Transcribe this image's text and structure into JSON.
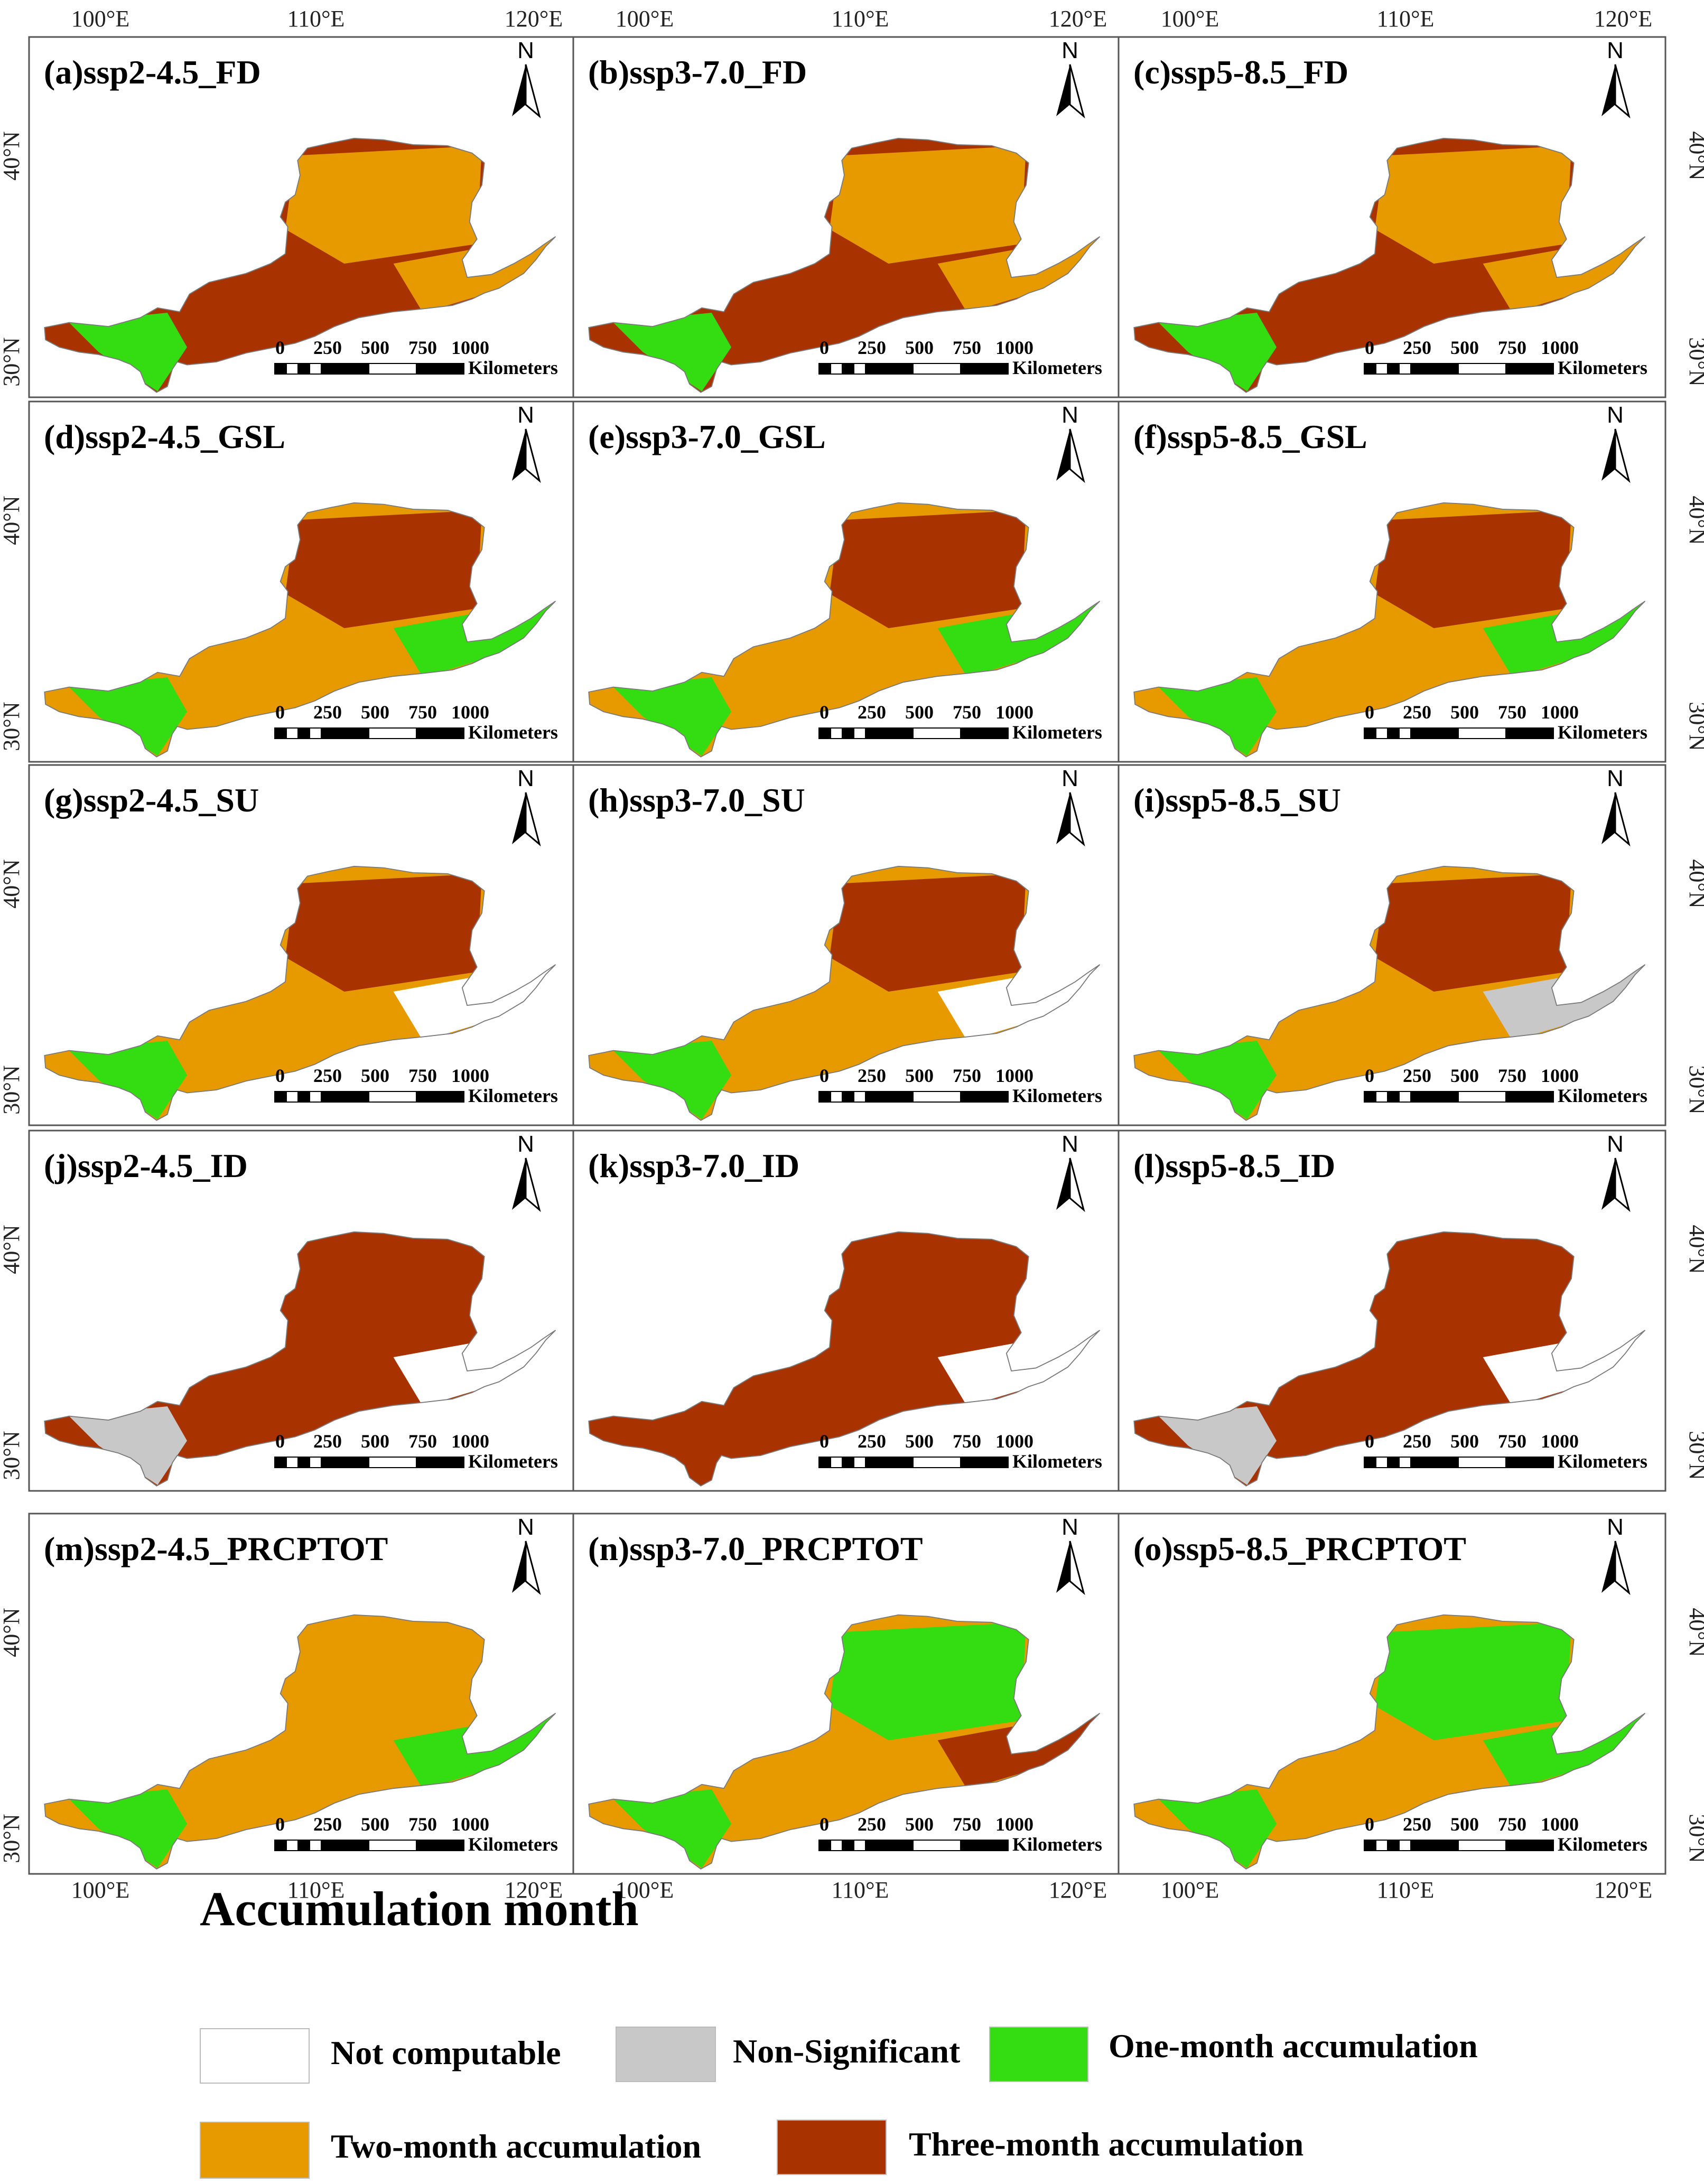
{
  "figure": {
    "x_ticks": [
      "100°E",
      "110°E",
      "120°E"
    ],
    "y_ticks": [
      "40°N",
      "30°N"
    ]
  },
  "north_arrow_label": "N",
  "scale_bar": {
    "numbers": [
      "0",
      "250",
      "500",
      "750",
      "1000"
    ],
    "unit": "Kilometers"
  },
  "categories": [
    {
      "key": "nc",
      "label": "Not computable",
      "color": "#ffffff"
    },
    {
      "key": "ns",
      "label": "Non-Significant",
      "color": "#c8c8c8"
    },
    {
      "key": "m1",
      "label": "One-month accumulation",
      "color": "#33dd11"
    },
    {
      "key": "m2",
      "label": "Two-month accumulation",
      "color": "#e69a00"
    },
    {
      "key": "m3",
      "label": "Three-month accumulation",
      "color": "#a83200"
    }
  ],
  "legend": {
    "title": "Accumulation month"
  },
  "panels": [
    {
      "title": "(a)ssp2-4.5_FD",
      "dominant": "m3",
      "patches": [
        "m2",
        "m1",
        "m2"
      ]
    },
    {
      "title": "(b)ssp3-7.0_FD",
      "dominant": "m3",
      "patches": [
        "m2",
        "m1",
        "m2"
      ]
    },
    {
      "title": "(c)ssp5-8.5_FD",
      "dominant": "m3",
      "patches": [
        "m2",
        "m1",
        "m2"
      ]
    },
    {
      "title": "(d)ssp2-4.5_GSL",
      "dominant": "m2",
      "patches": [
        "m3",
        "m1",
        "m1"
      ]
    },
    {
      "title": "(e)ssp3-7.0_GSL",
      "dominant": "m2",
      "patches": [
        "m3",
        "m1",
        "m1"
      ]
    },
    {
      "title": "(f)ssp5-8.5_GSL",
      "dominant": "m2",
      "patches": [
        "m3",
        "m1",
        "m1"
      ]
    },
    {
      "title": "(g)ssp2-4.5_SU",
      "dominant": "m2",
      "patches": [
        "m3",
        "m1",
        "nc"
      ]
    },
    {
      "title": "(h)ssp3-7.0_SU",
      "dominant": "m2",
      "patches": [
        "m3",
        "m1",
        "nc"
      ]
    },
    {
      "title": "(i)ssp5-8.5_SU",
      "dominant": "m2",
      "patches": [
        "m3",
        "m1",
        "ns"
      ]
    },
    {
      "title": "(j)ssp2-4.5_ID",
      "dominant": "m3",
      "patches": [
        "m3",
        "ns",
        "nc"
      ]
    },
    {
      "title": "(k)ssp3-7.0_ID",
      "dominant": "m3",
      "patches": [
        "m3",
        "m3",
        "nc"
      ]
    },
    {
      "title": "(l)ssp5-8.5_ID",
      "dominant": "m3",
      "patches": [
        "m3",
        "ns",
        "nc"
      ]
    },
    {
      "title": "(m)ssp2-4.5_PRCPTOT",
      "dominant": "m2",
      "patches": [
        "m2",
        "m1",
        "m1"
      ]
    },
    {
      "title": "(n)ssp3-7.0_PRCPTOT",
      "dominant": "m2",
      "patches": [
        "m1",
        "m1",
        "m3"
      ]
    },
    {
      "title": "(o)ssp5-8.5_PRCPTOT",
      "dominant": "m2",
      "patches": [
        "m1",
        "m1",
        "m1"
      ]
    }
  ]
}
